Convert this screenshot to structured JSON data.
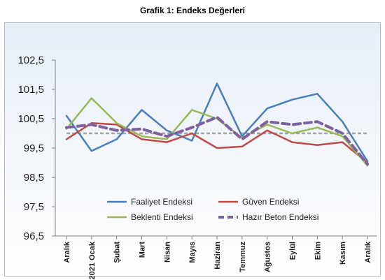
{
  "chart_data": {
    "type": "line",
    "title": "Grafik 1: Endeks Değerleri",
    "xlabel": "",
    "ylabel": "",
    "categories": [
      "Aralık",
      "2021 Ocak",
      "Şubat",
      "Mart",
      "Nisan",
      "Mayıs",
      "Haziran",
      "Temmuz",
      "Ağustos",
      "Eylül",
      "Ekim",
      "Kasım",
      "Aralık"
    ],
    "ylim": [
      96.5,
      102.5
    ],
    "yticks": [
      "102,5",
      "101,5",
      "100,5",
      "99,5",
      "98,5",
      "97,5",
      "96,5"
    ],
    "ytick_values": [
      102.5,
      101.5,
      100.5,
      99.5,
      98.5,
      97.5,
      96.5
    ],
    "grid": false,
    "legend_position": "bottom-center",
    "reference_line": {
      "value": 100.0,
      "color": "#a6a6a6",
      "style": "dashed"
    },
    "series": [
      {
        "name": "Faaliyet Endeksi",
        "color": "#4a7ebb",
        "dash": "solid",
        "values": [
          100.6,
          99.4,
          99.8,
          100.8,
          100.1,
          99.75,
          101.7,
          99.9,
          100.85,
          101.15,
          101.35,
          100.4,
          99.05
        ]
      },
      {
        "name": "Güven Endeksi",
        "color": "#be4b48",
        "dash": "solid",
        "values": [
          99.8,
          100.35,
          100.3,
          99.8,
          99.7,
          100.0,
          99.5,
          99.55,
          100.1,
          99.7,
          99.6,
          99.7,
          99.0
        ]
      },
      {
        "name": "Beklenti Endeksi",
        "color": "#98b954",
        "dash": "solid",
        "values": [
          100.15,
          101.2,
          100.35,
          99.9,
          99.8,
          100.8,
          100.5,
          99.85,
          100.3,
          100.0,
          100.2,
          99.9,
          98.9
        ]
      },
      {
        "name": "Hazır Beton Endeksi",
        "color": "#7d60a0",
        "dash": "dashed",
        "values": [
          100.2,
          100.3,
          100.1,
          100.15,
          99.9,
          100.2,
          100.55,
          99.8,
          100.4,
          100.3,
          100.4,
          100.0,
          98.95
        ]
      }
    ]
  }
}
